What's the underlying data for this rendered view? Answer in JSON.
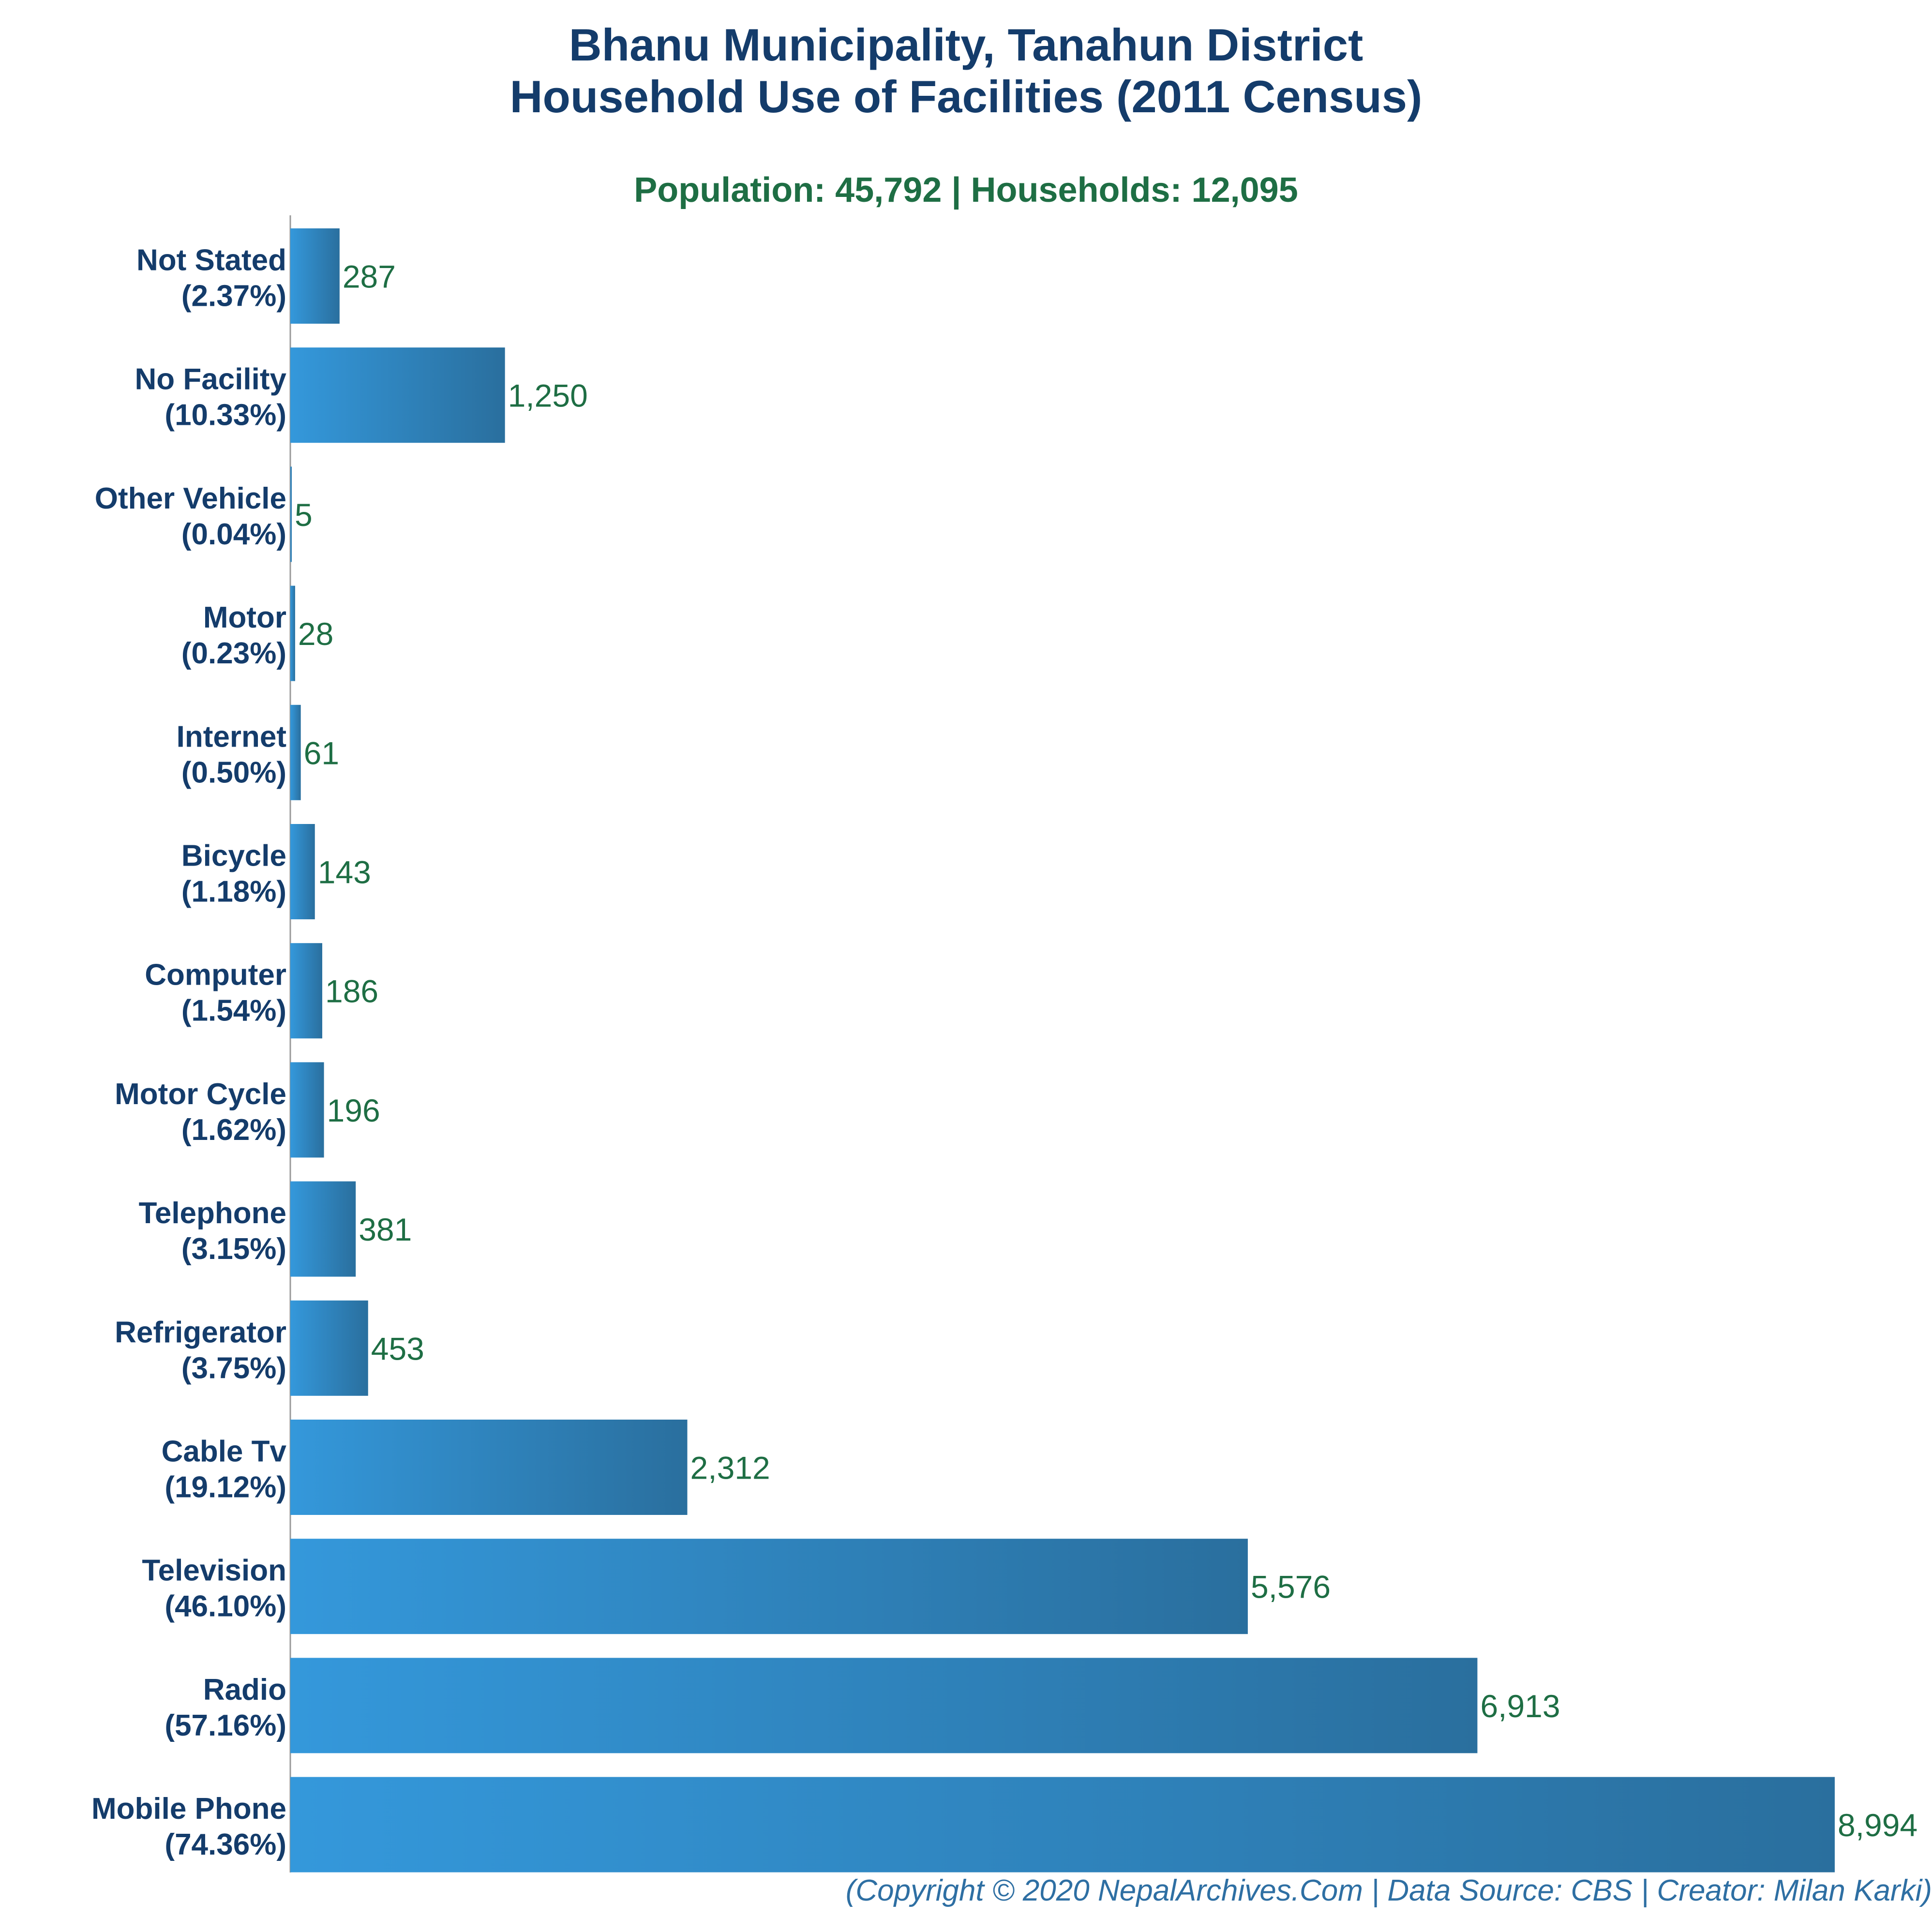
{
  "chart_data": {
    "type": "bar",
    "orientation": "horizontal",
    "title": "Bhanu Municipality, Tanahun District",
    "title_line2": "Household Use of Facilities (2011 Census)",
    "subtitle": "Population: 45,792 | Households: 12,095",
    "categories": [
      "Not Stated",
      "No Facility",
      "Other Vehicle",
      "Motor",
      "Internet",
      "Bicycle",
      "Computer",
      "Motor Cycle",
      "Telephone",
      "Refrigerator",
      "Cable Tv",
      "Television",
      "Radio",
      "Mobile Phone"
    ],
    "percent_labels": [
      "(2.37%)",
      "(10.33%)",
      "(0.04%)",
      "(0.23%)",
      "(0.50%)",
      "(1.18%)",
      "(1.54%)",
      "(1.62%)",
      "(3.15%)",
      "(3.75%)",
      "(19.12%)",
      "(46.10%)",
      "(57.16%)",
      "(74.36%)"
    ],
    "values": [
      287,
      1250,
      5,
      28,
      61,
      143,
      186,
      196,
      381,
      453,
      2312,
      5576,
      6913,
      8994
    ],
    "value_labels": [
      "287",
      "1,250",
      "5",
      "28",
      "61",
      "143",
      "186",
      "196",
      "381",
      "453",
      "2,312",
      "5,576",
      "6,913",
      "8,994"
    ],
    "xlim": [
      0,
      8994
    ],
    "grid": false,
    "legend": "none",
    "colors": {
      "bar_light": "#3498db",
      "bar_dark": "#2a6f9e",
      "title": "#143c6b",
      "subtitle": "#1e6e44",
      "value_label": "#1e6e44",
      "footer": "#2e6fa3"
    }
  },
  "footer": "(Copyright © 2020 NepalArchives.Com | Data Source: CBS | Creator: Milan Karki)"
}
